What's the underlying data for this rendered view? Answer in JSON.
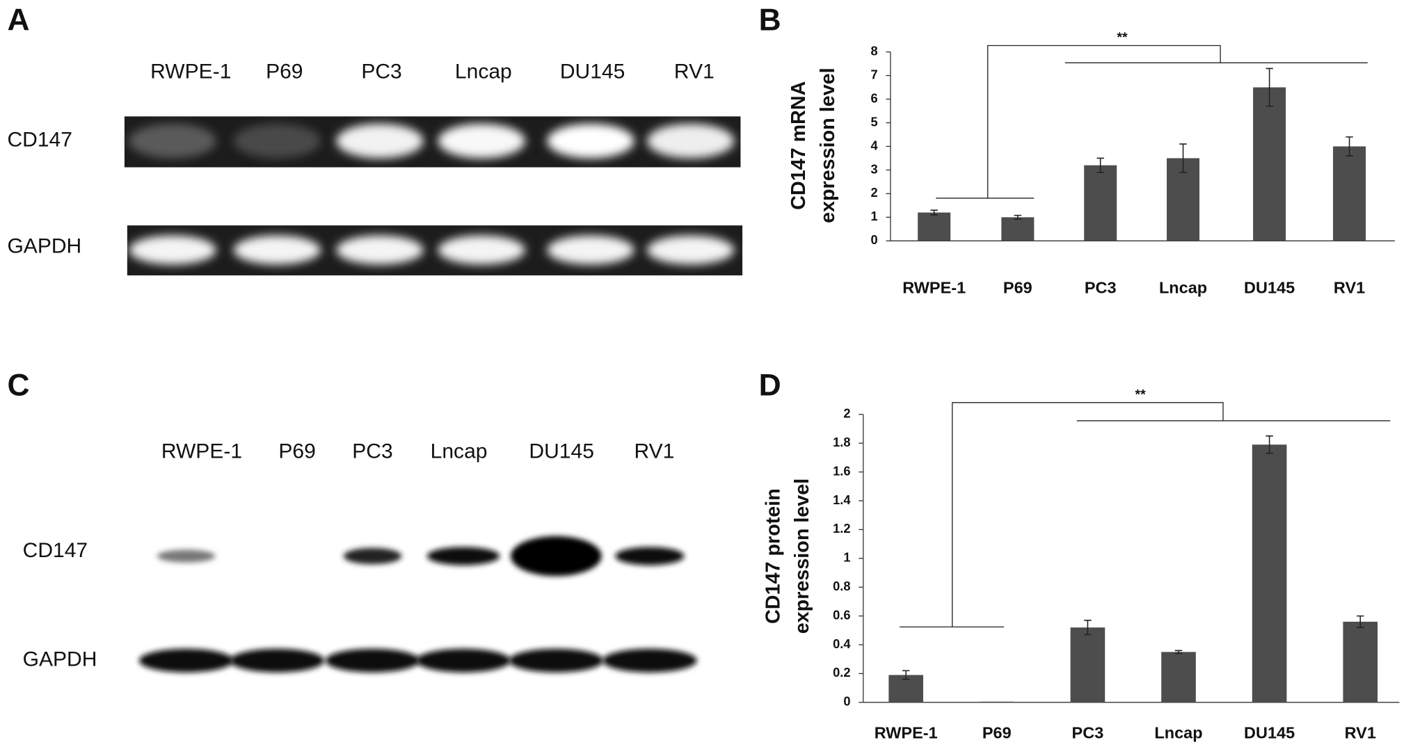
{
  "gels": [
    {
      "panel": "A",
      "lanes": [
        "RWPE-1",
        "P69",
        "PC3",
        "Lncap",
        "DU145",
        "RV1"
      ],
      "rows": [
        "CD147",
        "GAPDH"
      ]
    },
    {
      "panel": "C",
      "lanes": [
        "RWPE-1",
        "P69",
        "PC3",
        "Lncap",
        "DU145",
        "RV1"
      ],
      "rows": [
        "CD147",
        "GAPDH"
      ]
    }
  ],
  "chart_data": [
    {
      "type": "bar",
      "panel": "B",
      "ylabel": [
        "CD147 mRNA",
        "expression level"
      ],
      "annotation": "**",
      "categories": [
        "RWPE-1",
        "P69",
        "PC3",
        "Lncap",
        "DU145",
        "RV1"
      ],
      "values": [
        1.2,
        1.0,
        3.2,
        3.5,
        6.5,
        4.0
      ],
      "errors": [
        0.1,
        0.08,
        0.3,
        0.6,
        0.8,
        0.4
      ],
      "color": "#4d4d4d",
      "ylim": [
        0,
        8
      ],
      "yticks": [
        0,
        1,
        2,
        3,
        4,
        5,
        6,
        7,
        8
      ]
    },
    {
      "type": "bar",
      "panel": "D",
      "ylabel": [
        "CD147 protein",
        "expression level"
      ],
      "annotation": "**",
      "categories": [
        "RWPE-1",
        "P69",
        "PC3",
        "Lncap",
        "DU145",
        "RV1"
      ],
      "values": [
        0.19,
        0.005,
        0.52,
        0.35,
        1.79,
        0.56
      ],
      "errors": [
        0.03,
        0,
        0.05,
        0.01,
        0.06,
        0.04
      ],
      "color": "#4d4d4d",
      "ylim": [
        0,
        2
      ],
      "yticks": [
        0,
        0.2,
        0.4,
        0.6,
        0.8,
        1,
        1.2,
        1.4,
        1.6,
        1.8,
        2
      ]
    }
  ]
}
